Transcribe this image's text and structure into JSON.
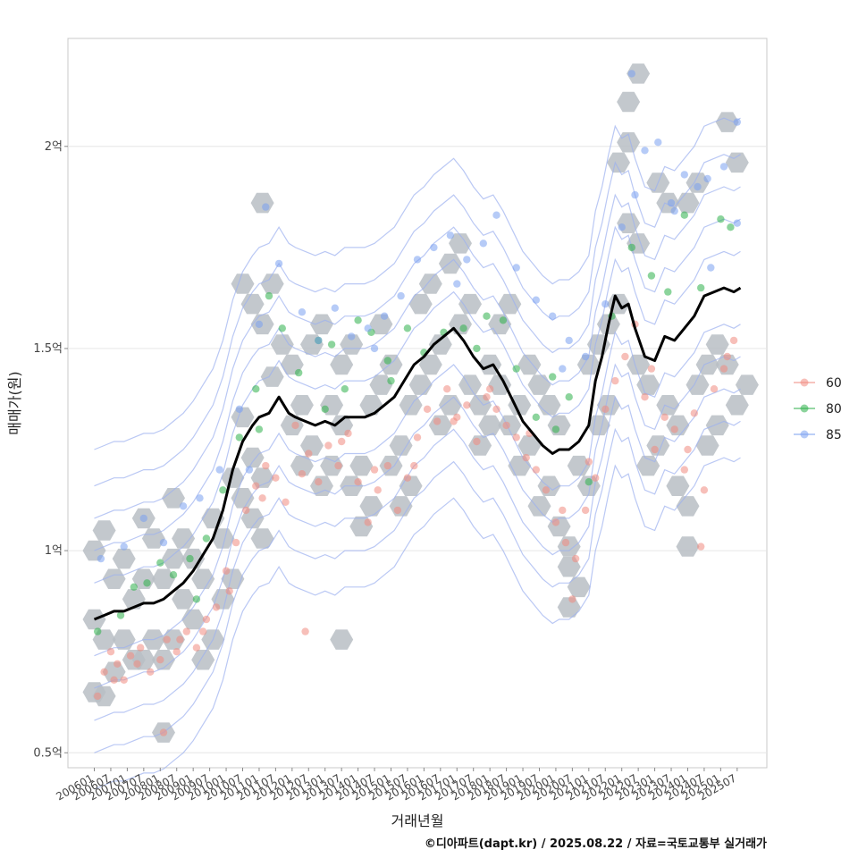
{
  "chart_data": {
    "type": "scatter",
    "title": "",
    "xlabel": "거래년월",
    "ylabel": "매매가(원)",
    "x_ticks": [
      "200601",
      "200607",
      "200701",
      "200707",
      "200801",
      "200807",
      "200901",
      "200907",
      "201001",
      "201007",
      "201101",
      "201107",
      "201201",
      "201207",
      "201301",
      "201307",
      "201401",
      "201407",
      "201501",
      "201507",
      "201601",
      "201607",
      "201701",
      "201707",
      "201801",
      "201807",
      "201901",
      "201907",
      "202001",
      "202007",
      "202101",
      "202107",
      "202201",
      "202207",
      "202301",
      "202307",
      "202401",
      "202407",
      "202501",
      "202507"
    ],
    "x_range": [
      2005.2,
      2026.4
    ],
    "y_ticks": [
      {
        "value": 0.5,
        "label": "0.5억"
      },
      {
        "value": 1.0,
        "label": "1억"
      },
      {
        "value": 1.5,
        "label": "1.5억"
      },
      {
        "value": 2.0,
        "label": "2억"
      }
    ],
    "ylim": [
      0.463,
      2.267
    ],
    "legend": {
      "position": "right",
      "entries": [
        {
          "name": "60",
          "color": "#f08a80"
        },
        {
          "name": "80",
          "color": "#2eb04a"
        },
        {
          "name": "85",
          "color": "#7aa0f0"
        }
      ]
    },
    "moving_average": {
      "color": "#000000",
      "x": [
        2006.0,
        2006.3,
        2006.6,
        2006.9,
        2007.2,
        2007.5,
        2007.8,
        2008.1,
        2008.4,
        2008.7,
        2009.0,
        2009.3,
        2009.6,
        2009.9,
        2010.2,
        2010.5,
        2010.8,
        2011.0,
        2011.3,
        2011.6,
        2011.9,
        2012.1,
        2012.4,
        2012.7,
        2013.0,
        2013.3,
        2013.6,
        2013.9,
        2014.2,
        2014.5,
        2014.8,
        2015.1,
        2015.4,
        2015.7,
        2016.0,
        2016.3,
        2016.6,
        2016.9,
        2017.2,
        2017.5,
        2017.8,
        2018.1,
        2018.4,
        2018.7,
        2019.0,
        2019.3,
        2019.6,
        2019.9,
        2020.1,
        2020.4,
        2020.7,
        2021.0,
        2021.2,
        2021.4,
        2021.6,
        2021.8,
        2022.0,
        2022.2,
        2022.4,
        2022.7,
        2023.0,
        2023.3,
        2023.6,
        2023.9,
        2024.2,
        2024.5,
        2024.8,
        2025.1,
        2025.4,
        2025.6
      ],
      "y": [
        0.83,
        0.84,
        0.85,
        0.85,
        0.86,
        0.87,
        0.87,
        0.88,
        0.9,
        0.92,
        0.95,
        0.99,
        1.03,
        1.1,
        1.2,
        1.27,
        1.31,
        1.33,
        1.34,
        1.38,
        1.34,
        1.33,
        1.32,
        1.31,
        1.32,
        1.31,
        1.33,
        1.33,
        1.33,
        1.34,
        1.36,
        1.38,
        1.42,
        1.46,
        1.48,
        1.51,
        1.53,
        1.55,
        1.52,
        1.48,
        1.45,
        1.46,
        1.42,
        1.37,
        1.32,
        1.29,
        1.26,
        1.24,
        1.25,
        1.25,
        1.27,
        1.31,
        1.42,
        1.48,
        1.56,
        1.63,
        1.6,
        1.61,
        1.55,
        1.48,
        1.47,
        1.53,
        1.52,
        1.55,
        1.58,
        1.63,
        1.64,
        1.65,
        1.64,
        1.65
      ]
    },
    "series": [
      {
        "name": "60",
        "color": "#f08a80",
        "x": [
          2006.1,
          2006.3,
          2006.5,
          2006.7,
          2006.9,
          2007.1,
          2007.4,
          2007.7,
          2008.0,
          2008.2,
          2008.5,
          2008.8,
          2009.1,
          2009.4,
          2009.7,
          2010.0,
          2010.3,
          2010.6,
          2010.9,
          2011.2,
          2011.5,
          2011.8,
          2012.1,
          2012.5,
          2012.8,
          2013.1,
          2013.4,
          2013.7,
          2014.0,
          2014.3,
          2014.6,
          2014.9,
          2015.2,
          2015.5,
          2015.8,
          2016.1,
          2016.4,
          2016.7,
          2017.0,
          2017.3,
          2017.6,
          2017.9,
          2018.2,
          2018.5,
          2018.8,
          2019.1,
          2019.4,
          2019.7,
          2020.0,
          2020.3,
          2020.6,
          2020.9,
          2021.2,
          2021.5,
          2021.8,
          2022.1,
          2022.4,
          2022.7,
          2023.0,
          2023.3,
          2023.6,
          2023.9,
          2024.2,
          2024.5,
          2024.8,
          2025.1,
          2025.4,
          2006.6,
          2007.3,
          2008.6,
          2009.3,
          2010.1,
          2011.1,
          2012.3,
          2013.5,
          2014.5,
          2015.7,
          2016.9,
          2018.0,
          2019.2,
          2020.2,
          2021.0,
          2022.9,
          2024.0,
          2025.2,
          2008.1,
          2012.4,
          2020.5,
          2024.4
        ],
        "y": [
          0.64,
          0.7,
          0.75,
          0.72,
          0.68,
          0.74,
          0.76,
          0.7,
          0.73,
          0.78,
          0.75,
          0.8,
          0.76,
          0.83,
          0.86,
          0.95,
          1.02,
          1.1,
          1.16,
          1.21,
          1.18,
          1.12,
          1.31,
          1.24,
          1.17,
          1.26,
          1.21,
          1.29,
          1.17,
          1.07,
          1.15,
          1.21,
          1.1,
          1.18,
          1.28,
          1.35,
          1.32,
          1.4,
          1.33,
          1.36,
          1.27,
          1.38,
          1.35,
          1.31,
          1.28,
          1.23,
          1.2,
          1.15,
          1.07,
          1.02,
          0.98,
          1.1,
          1.18,
          1.35,
          1.42,
          1.48,
          1.56,
          1.38,
          1.25,
          1.33,
          1.3,
          1.2,
          1.34,
          1.15,
          1.4,
          1.45,
          1.52,
          0.68,
          0.72,
          0.78,
          0.8,
          0.9,
          1.13,
          1.19,
          1.27,
          1.2,
          1.21,
          1.32,
          1.4,
          1.29,
          1.1,
          1.22,
          1.45,
          1.25,
          1.48,
          0.55,
          0.8,
          0.88,
          1.01
        ]
      },
      {
        "name": "80",
        "color": "#2eb04a",
        "x": [
          2006.1,
          2006.8,
          2007.2,
          2007.6,
          2008.0,
          2008.4,
          2008.9,
          2009.4,
          2009.9,
          2010.4,
          2010.9,
          2011.3,
          2011.7,
          2012.2,
          2012.8,
          2013.2,
          2013.6,
          2014.0,
          2014.4,
          2014.9,
          2015.5,
          2016.0,
          2016.6,
          2017.2,
          2017.9,
          2018.4,
          2018.8,
          2019.4,
          2019.9,
          2020.4,
          2021.0,
          2021.7,
          2022.3,
          2022.9,
          2023.4,
          2023.9,
          2024.4,
          2025.0,
          2025.3,
          2009.1,
          2011.0,
          2013.0,
          2015.0,
          2017.6,
          2020.0
        ],
        "y": [
          0.8,
          0.84,
          0.91,
          0.92,
          0.97,
          0.94,
          0.98,
          1.03,
          1.15,
          1.28,
          1.4,
          1.63,
          1.55,
          1.44,
          1.52,
          1.51,
          1.4,
          1.57,
          1.54,
          1.47,
          1.55,
          1.49,
          1.54,
          1.55,
          1.58,
          1.57,
          1.45,
          1.33,
          1.43,
          1.38,
          1.17,
          1.58,
          1.75,
          1.68,
          1.64,
          1.83,
          1.65,
          1.82,
          1.8,
          0.88,
          1.3,
          1.35,
          1.42,
          1.5,
          1.3
        ]
      },
      {
        "name": "85",
        "color": "#7aa0f0",
        "x": [
          2006.2,
          2006.9,
          2007.5,
          2008.1,
          2008.7,
          2009.2,
          2009.8,
          2010.4,
          2011.0,
          2011.6,
          2011.2,
          2012.3,
          2012.8,
          2013.3,
          2013.8,
          2014.3,
          2014.8,
          2015.3,
          2015.8,
          2016.3,
          2016.8,
          2017.3,
          2017.8,
          2018.2,
          2018.8,
          2019.4,
          2019.9,
          2020.4,
          2020.9,
          2021.5,
          2022.0,
          2022.4,
          2022.7,
          2023.1,
          2023.5,
          2023.9,
          2024.3,
          2024.7,
          2025.1,
          2025.5,
          2022.3,
          2023.6,
          2024.6,
          2025.5,
          2010.7,
          2014.5,
          2017.0,
          2020.2
        ],
        "y": [
          0.98,
          1.01,
          1.08,
          1.02,
          1.11,
          1.13,
          1.2,
          1.35,
          1.56,
          1.71,
          1.85,
          1.59,
          1.52,
          1.6,
          1.53,
          1.55,
          1.58,
          1.63,
          1.72,
          1.75,
          1.78,
          1.72,
          1.76,
          1.83,
          1.7,
          1.62,
          1.58,
          1.52,
          1.48,
          1.61,
          1.8,
          1.88,
          1.99,
          2.01,
          1.86,
          1.93,
          1.9,
          1.7,
          1.95,
          2.06,
          2.18,
          1.84,
          1.92,
          1.81,
          1.2,
          1.5,
          1.66,
          1.45
        ]
      }
    ],
    "density_cells": [
      [
        2006.0,
        1.0
      ],
      [
        2006.3,
        1.05
      ],
      [
        2006.0,
        0.83
      ],
      [
        2006.3,
        0.78
      ],
      [
        2006.0,
        0.65
      ],
      [
        2006.6,
        0.7
      ],
      [
        2006.3,
        0.64
      ],
      [
        2006.6,
        0.93
      ],
      [
        2006.9,
        0.98
      ],
      [
        2006.9,
        0.78
      ],
      [
        2007.2,
        0.73
      ],
      [
        2007.2,
        0.88
      ],
      [
        2007.5,
        0.93
      ],
      [
        2007.5,
        1.08
      ],
      [
        2007.8,
        1.03
      ],
      [
        2007.5,
        0.73
      ],
      [
        2007.8,
        0.78
      ],
      [
        2008.1,
        0.73
      ],
      [
        2008.4,
        0.78
      ],
      [
        2008.1,
        0.93
      ],
      [
        2008.4,
        0.98
      ],
      [
        2008.7,
        1.03
      ],
      [
        2008.4,
        1.13
      ],
      [
        2008.7,
        0.88
      ],
      [
        2009.0,
        0.83
      ],
      [
        2009.0,
        0.98
      ],
      [
        2009.3,
        0.93
      ],
      [
        2009.3,
        0.73
      ],
      [
        2009.6,
        0.78
      ],
      [
        2009.6,
        1.08
      ],
      [
        2009.9,
        1.03
      ],
      [
        2009.9,
        0.88
      ],
      [
        2010.2,
        0.93
      ],
      [
        2010.2,
        1.18
      ],
      [
        2010.5,
        1.13
      ],
      [
        2010.5,
        1.33
      ],
      [
        2010.8,
        1.08
      ],
      [
        2010.8,
        1.23
      ],
      [
        2011.1,
        1.18
      ],
      [
        2011.1,
        1.03
      ],
      [
        2011.4,
        1.43
      ],
      [
        2010.5,
        1.66
      ],
      [
        2010.8,
        1.61
      ],
      [
        2011.1,
        1.56
      ],
      [
        2011.4,
        1.66
      ],
      [
        2011.1,
        1.86
      ],
      [
        2011.7,
        1.51
      ],
      [
        2012.0,
        1.46
      ],
      [
        2012.0,
        1.31
      ],
      [
        2012.3,
        1.36
      ],
      [
        2012.3,
        1.21
      ],
      [
        2012.6,
        1.26
      ],
      [
        2012.6,
        1.51
      ],
      [
        2012.9,
        1.56
      ],
      [
        2012.9,
        1.16
      ],
      [
        2013.2,
        1.21
      ],
      [
        2013.2,
        1.36
      ],
      [
        2013.5,
        1.31
      ],
      [
        2013.5,
        1.46
      ],
      [
        2013.8,
        1.51
      ],
      [
        2013.8,
        1.16
      ],
      [
        2014.1,
        1.21
      ],
      [
        2014.1,
        1.06
      ],
      [
        2014.4,
        1.11
      ],
      [
        2014.4,
        1.36
      ],
      [
        2014.7,
        1.41
      ],
      [
        2014.7,
        1.56
      ],
      [
        2015.0,
        1.46
      ],
      [
        2015.0,
        1.21
      ],
      [
        2015.3,
        1.26
      ],
      [
        2015.3,
        1.11
      ],
      [
        2015.6,
        1.16
      ],
      [
        2015.6,
        1.36
      ],
      [
        2015.9,
        1.41
      ],
      [
        2015.9,
        1.61
      ],
      [
        2016.2,
        1.66
      ],
      [
        2016.2,
        1.46
      ],
      [
        2016.5,
        1.51
      ],
      [
        2016.5,
        1.31
      ],
      [
        2016.8,
        1.36
      ],
      [
        2016.8,
        1.71
      ],
      [
        2017.1,
        1.76
      ],
      [
        2017.1,
        1.56
      ],
      [
        2017.4,
        1.61
      ],
      [
        2017.4,
        1.41
      ],
      [
        2017.7,
        1.36
      ],
      [
        2017.7,
        1.26
      ],
      [
        2018.0,
        1.31
      ],
      [
        2018.0,
        1.46
      ],
      [
        2018.3,
        1.41
      ],
      [
        2018.3,
        1.56
      ],
      [
        2018.6,
        1.61
      ],
      [
        2018.6,
        1.31
      ],
      [
        2018.9,
        1.36
      ],
      [
        2018.9,
        1.21
      ],
      [
        2019.2,
        1.26
      ],
      [
        2019.2,
        1.46
      ],
      [
        2019.5,
        1.41
      ],
      [
        2019.5,
        1.11
      ],
      [
        2019.8,
        1.16
      ],
      [
        2019.8,
        1.36
      ],
      [
        2020.1,
        1.31
      ],
      [
        2020.1,
        1.06
      ],
      [
        2020.4,
        1.01
      ],
      [
        2020.4,
        0.96
      ],
      [
        2020.7,
        0.91
      ],
      [
        2020.7,
        1.21
      ],
      [
        2021.0,
        1.16
      ],
      [
        2021.0,
        1.46
      ],
      [
        2021.3,
        1.51
      ],
      [
        2021.3,
        1.31
      ],
      [
        2021.6,
        1.36
      ],
      [
        2021.6,
        1.56
      ],
      [
        2021.9,
        1.61
      ],
      [
        2021.9,
        1.96
      ],
      [
        2022.2,
        2.01
      ],
      [
        2022.2,
        1.81
      ],
      [
        2022.5,
        1.76
      ],
      [
        2022.5,
        1.46
      ],
      [
        2022.8,
        1.41
      ],
      [
        2022.8,
        1.21
      ],
      [
        2023.1,
        1.26
      ],
      [
        2023.1,
        1.91
      ],
      [
        2023.4,
        1.86
      ],
      [
        2023.4,
        1.36
      ],
      [
        2023.7,
        1.31
      ],
      [
        2023.7,
        1.16
      ],
      [
        2024.0,
        1.11
      ],
      [
        2024.0,
        1.86
      ],
      [
        2024.3,
        1.91
      ],
      [
        2024.3,
        1.41
      ],
      [
        2024.6,
        1.46
      ],
      [
        2024.6,
        1.26
      ],
      [
        2024.9,
        1.31
      ],
      [
        2024.9,
        1.51
      ],
      [
        2025.2,
        1.46
      ],
      [
        2025.2,
        2.06
      ],
      [
        2025.5,
        1.96
      ],
      [
        2025.5,
        1.36
      ],
      [
        2025.8,
        1.41
      ],
      [
        2022.2,
        2.11
      ],
      [
        2022.5,
        2.18
      ],
      [
        2020.4,
        0.86
      ],
      [
        2008.1,
        0.55
      ],
      [
        2013.5,
        0.78
      ],
      [
        2024.0,
        1.01
      ]
    ]
  },
  "caption": "©디아파트(dapt.kr) / 2025.08.22 / 자료=국토교통부 실거래가"
}
